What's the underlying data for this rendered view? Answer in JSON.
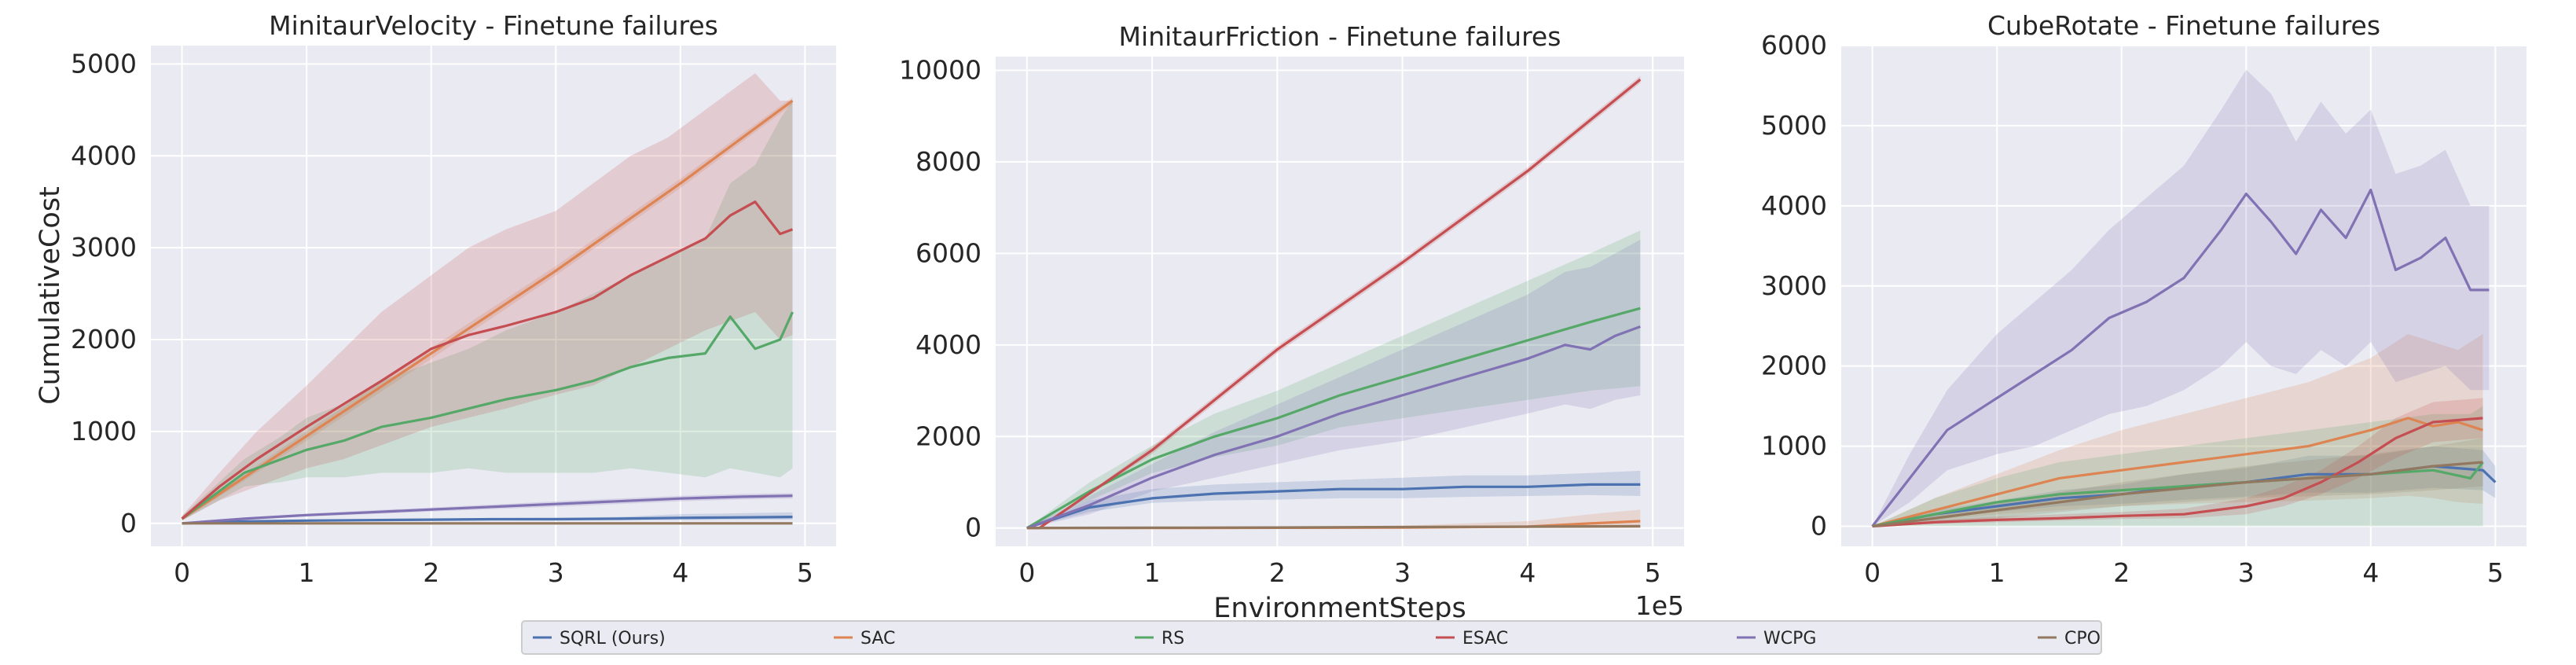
{
  "figure": {
    "ylabel": "CumulativeCost",
    "xlabel": "EnvironmentSteps",
    "x_scale_label": "1e5"
  },
  "legend": {
    "entries": [
      {
        "name": "SQRL (Ours)",
        "color": "#4c72b0"
      },
      {
        "name": "SAC",
        "color": "#dd8452"
      },
      {
        "name": "RS",
        "color": "#55a868"
      },
      {
        "name": "ESAC",
        "color": "#c44e52"
      },
      {
        "name": "WCPG",
        "color": "#8172b3"
      },
      {
        "name": "CPO",
        "color": "#937860"
      }
    ]
  },
  "chart_data": [
    {
      "type": "line",
      "title": "MinitaurVelocity - Finetune failures",
      "ylabel": "CumulativeCost",
      "xlim": [
        -0.25,
        5.25
      ],
      "ylim": [
        -250,
        5200
      ],
      "xticks": [
        0,
        1,
        2,
        3,
        4,
        5
      ],
      "yticks": [
        0,
        1000,
        2000,
        3000,
        4000,
        5000
      ],
      "grid": true,
      "series": [
        {
          "name": "SQRL (Ours)",
          "color": "#4c72b0",
          "x": [
            0,
            0.5,
            1,
            1.5,
            2,
            2.5,
            3,
            3.5,
            4,
            4.5,
            4.9
          ],
          "y": [
            0,
            20,
            30,
            35,
            40,
            45,
            45,
            50,
            60,
            65,
            70
          ],
          "lo": [
            0,
            10,
            20,
            25,
            28,
            30,
            30,
            32,
            35,
            38,
            40
          ],
          "hi": [
            0,
            30,
            40,
            48,
            52,
            58,
            62,
            70,
            100,
            110,
            120
          ]
        },
        {
          "name": "SAC",
          "color": "#dd8452",
          "x": [
            0,
            1,
            2,
            3,
            4,
            4.9
          ],
          "y": [
            50,
            950,
            1850,
            2750,
            3700,
            4600
          ],
          "lo": [
            30,
            900,
            1790,
            2700,
            3650,
            4560
          ],
          "hi": [
            70,
            1000,
            1910,
            2800,
            3750,
            4640
          ]
        },
        {
          "name": "RS",
          "color": "#55a868",
          "x": [
            0,
            0.5,
            0.8,
            1,
            1.3,
            1.6,
            2,
            2.3,
            2.6,
            3,
            3.3,
            3.6,
            3.9,
            4.2,
            4.4,
            4.6,
            4.8,
            4.9
          ],
          "y": [
            50,
            550,
            700,
            800,
            900,
            1050,
            1150,
            1250,
            1350,
            1450,
            1550,
            1700,
            1800,
            1850,
            2250,
            1900,
            2000,
            2300
          ],
          "lo": [
            30,
            400,
            450,
            500,
            500,
            550,
            550,
            600,
            550,
            550,
            550,
            600,
            550,
            500,
            600,
            550,
            500,
            600
          ],
          "hi": [
            80,
            700,
            950,
            1150,
            1300,
            1550,
            1750,
            1900,
            2100,
            2300,
            2500,
            2700,
            2900,
            3100,
            3700,
            3900,
            4400,
            4600
          ]
        },
        {
          "name": "ESAC",
          "color": "#c44e52",
          "x": [
            0,
            0.3,
            0.6,
            1,
            1.3,
            1.6,
            2,
            2.3,
            2.6,
            3,
            3.3,
            3.6,
            3.9,
            4.2,
            4.4,
            4.6,
            4.8,
            4.9
          ],
          "y": [
            50,
            400,
            700,
            1050,
            1300,
            1550,
            1900,
            2050,
            2150,
            2300,
            2450,
            2700,
            2900,
            3100,
            3350,
            3500,
            3150,
            3200
          ],
          "lo": [
            30,
            250,
            400,
            600,
            700,
            850,
            1050,
            1150,
            1250,
            1400,
            1500,
            1700,
            1900,
            2100,
            2200,
            2300,
            2000,
            2050
          ],
          "hi": [
            80,
            550,
            1000,
            1500,
            1900,
            2300,
            2700,
            3000,
            3200,
            3400,
            3700,
            4000,
            4200,
            4500,
            4700,
            4900,
            4600,
            4600
          ]
        },
        {
          "name": "WCPG",
          "color": "#8172b3",
          "x": [
            0,
            0.5,
            1,
            1.5,
            2,
            2.5,
            3,
            3.5,
            4,
            4.5,
            4.9
          ],
          "y": [
            0,
            50,
            90,
            120,
            150,
            180,
            210,
            240,
            270,
            290,
            300
          ],
          "lo": [
            0,
            40,
            75,
            100,
            128,
            155,
            180,
            210,
            240,
            260,
            270
          ],
          "hi": [
            0,
            60,
            105,
            140,
            172,
            205,
            240,
            270,
            300,
            320,
            330
          ]
        },
        {
          "name": "CPO",
          "color": "#937860",
          "x": [
            0,
            4.9
          ],
          "y": [
            0,
            0
          ],
          "lo": [
            0,
            0
          ],
          "hi": [
            0,
            0
          ]
        }
      ]
    },
    {
      "type": "line",
      "title": "MinitaurFriction - Finetune failures",
      "ylabel": "",
      "xlim": [
        -0.25,
        5.25
      ],
      "ylim": [
        -400,
        10300
      ],
      "xticks": [
        0,
        1,
        2,
        3,
        4,
        5
      ],
      "yticks": [
        0,
        2000,
        4000,
        6000,
        8000,
        10000
      ],
      "grid": true,
      "series": [
        {
          "name": "SQRL (Ours)",
          "color": "#4c72b0",
          "x": [
            0,
            0.5,
            1,
            1.5,
            2,
            2.5,
            3,
            3.5,
            4,
            4.5,
            4.9
          ],
          "y": [
            0,
            450,
            650,
            750,
            800,
            850,
            850,
            900,
            900,
            950,
            950
          ],
          "lo": [
            0,
            350,
            550,
            600,
            620,
            650,
            650,
            680,
            700,
            720,
            700
          ],
          "hi": [
            0,
            600,
            850,
            950,
            1000,
            1050,
            1100,
            1150,
            1150,
            1200,
            1250
          ]
        },
        {
          "name": "SAC",
          "color": "#dd8452",
          "x": [
            0,
            1,
            2,
            3,
            4,
            4.5,
            4.9
          ],
          "y": [
            0,
            0,
            5,
            10,
            30,
            100,
            150
          ],
          "lo": [
            0,
            0,
            0,
            0,
            0,
            0,
            0
          ],
          "hi": [
            0,
            10,
            20,
            50,
            150,
            300,
            400
          ]
        },
        {
          "name": "RS",
          "color": "#55a868",
          "x": [
            0,
            0.5,
            1,
            1.5,
            2,
            2.5,
            3,
            3.5,
            4,
            4.5,
            4.9
          ],
          "y": [
            0,
            800,
            1500,
            2000,
            2400,
            2900,
            3300,
            3700,
            4100,
            4500,
            4800
          ],
          "lo": [
            0,
            600,
            1200,
            1550,
            1800,
            2200,
            2400,
            2600,
            2800,
            3000,
            3100
          ],
          "hi": [
            0,
            1000,
            1800,
            2500,
            3000,
            3600,
            4200,
            4800,
            5400,
            6000,
            6500
          ]
        },
        {
          "name": "ESAC",
          "color": "#c44e52",
          "x": [
            0,
            0.1,
            1,
            2,
            3,
            4,
            4.9
          ],
          "y": [
            0,
            0,
            1700,
            3900,
            5800,
            7800,
            9800
          ],
          "lo": [
            0,
            0,
            1620,
            3820,
            5720,
            7720,
            9720
          ],
          "hi": [
            0,
            0,
            1780,
            3980,
            5880,
            7880,
            9880
          ]
        },
        {
          "name": "WCPG",
          "color": "#8172b3",
          "x": [
            0,
            0.5,
            1,
            1.5,
            2,
            2.5,
            3,
            3.5,
            4,
            4.3,
            4.5,
            4.7,
            4.9
          ],
          "y": [
            0,
            500,
            1100,
            1600,
            2000,
            2500,
            2900,
            3300,
            3700,
            4000,
            3900,
            4200,
            4400
          ],
          "lo": [
            0,
            300,
            800,
            1100,
            1400,
            1700,
            1900,
            2200,
            2500,
            2700,
            2600,
            2800,
            2900
          ],
          "hi": [
            0,
            700,
            1400,
            2100,
            2700,
            3300,
            3900,
            4500,
            5100,
            5600,
            5700,
            6000,
            6300
          ]
        },
        {
          "name": "CPO",
          "color": "#937860",
          "x": [
            0,
            1,
            2,
            3,
            4,
            4.9
          ],
          "y": [
            0,
            5,
            10,
            20,
            30,
            40
          ],
          "lo": [
            0,
            0,
            0,
            0,
            0,
            0
          ],
          "hi": [
            0,
            20,
            30,
            40,
            50,
            60
          ]
        }
      ]
    },
    {
      "type": "line",
      "title": "CubeRotate - Finetune failures",
      "ylabel": "",
      "xlim": [
        -0.25,
        5.25
      ],
      "ylim": [
        -250,
        6000
      ],
      "xticks": [
        0,
        1,
        2,
        3,
        4,
        5
      ],
      "yticks": [
        0,
        1000,
        2000,
        3000,
        4000,
        5000,
        6000
      ],
      "grid": true,
      "series": [
        {
          "name": "SQRL (Ours)",
          "color": "#4c72b0",
          "x": [
            0,
            0.5,
            1,
            1.5,
            2,
            2.5,
            3,
            3.5,
            4,
            4.5,
            4.9,
            5.0
          ],
          "y": [
            0,
            150,
            250,
            350,
            400,
            500,
            550,
            650,
            650,
            750,
            700,
            550
          ],
          "lo": [
            0,
            100,
            180,
            250,
            280,
            330,
            370,
            420,
            420,
            480,
            450,
            350
          ],
          "hi": [
            0,
            200,
            320,
            450,
            520,
            650,
            730,
            880,
            880,
            1000,
            950,
            750
          ]
        },
        {
          "name": "SAC",
          "color": "#dd8452",
          "x": [
            0,
            0.5,
            1,
            1.5,
            2,
            2.5,
            3,
            3.5,
            4,
            4.3,
            4.5,
            4.7,
            4.9
          ],
          "y": [
            0,
            200,
            400,
            600,
            700,
            800,
            900,
            1000,
            1200,
            1350,
            1250,
            1300,
            1200
          ],
          "lo": [
            0,
            80,
            150,
            200,
            250,
            280,
            300,
            320,
            350,
            380,
            350,
            300,
            280
          ],
          "hi": [
            0,
            350,
            650,
            950,
            1200,
            1400,
            1600,
            1800,
            2100,
            2400,
            2300,
            2200,
            2400
          ]
        },
        {
          "name": "RS",
          "color": "#55a868",
          "x": [
            0,
            0.5,
            1,
            1.5,
            2,
            2.5,
            3,
            3.5,
            4,
            4.5,
            4.8,
            4.9
          ],
          "y": [
            0,
            150,
            300,
            400,
            450,
            500,
            550,
            600,
            650,
            700,
            600,
            800
          ],
          "lo": [
            0,
            0,
            0,
            0,
            0,
            0,
            0,
            0,
            0,
            0,
            0,
            0
          ],
          "hi": [
            0,
            350,
            600,
            800,
            900,
            1000,
            1100,
            1200,
            1300,
            1400,
            1400,
            1500
          ]
        },
        {
          "name": "ESAC",
          "color": "#c44e52",
          "x": [
            0,
            0.5,
            1,
            1.5,
            2,
            2.5,
            3,
            3.3,
            3.6,
            3.9,
            4.2,
            4.5,
            4.9
          ],
          "y": [
            0,
            50,
            80,
            100,
            130,
            150,
            250,
            350,
            550,
            800,
            1100,
            1300,
            1350
          ],
          "lo": [
            0,
            30,
            50,
            70,
            90,
            100,
            150,
            250,
            400,
            600,
            850,
            1050,
            1100
          ],
          "hi": [
            0,
            80,
            120,
            150,
            180,
            220,
            350,
            500,
            700,
            1000,
            1350,
            1550,
            1600
          ]
        },
        {
          "name": "WCPG",
          "color": "#8172b3",
          "x": [
            0,
            0.3,
            0.6,
            1,
            1.3,
            1.6,
            1.9,
            2.2,
            2.5,
            2.8,
            3,
            3.2,
            3.4,
            3.6,
            3.8,
            4,
            4.2,
            4.4,
            4.6,
            4.8,
            4.95
          ],
          "y": [
            0,
            600,
            1200,
            1600,
            1900,
            2200,
            2600,
            2800,
            3100,
            3700,
            4150,
            3800,
            3400,
            3950,
            3600,
            4200,
            3200,
            3350,
            3600,
            2950,
            2950
          ],
          "lo": [
            0,
            300,
            700,
            900,
            1000,
            1200,
            1400,
            1500,
            1700,
            2000,
            2300,
            2000,
            1900,
            2200,
            2000,
            2300,
            1800,
            1900,
            2000,
            1700,
            1700
          ],
          "hi": [
            0,
            900,
            1700,
            2400,
            2800,
            3200,
            3700,
            4100,
            4500,
            5200,
            5700,
            5400,
            4800,
            5300,
            4900,
            5200,
            4400,
            4500,
            4700,
            4000,
            4000
          ]
        },
        {
          "name": "CPO",
          "color": "#937860",
          "x": [
            0,
            1,
            2,
            3,
            4,
            4.5,
            4.9
          ],
          "y": [
            0,
            200,
            400,
            550,
            650,
            750,
            800
          ],
          "lo": [
            0,
            100,
            250,
            350,
            400,
            450,
            500
          ],
          "hi": [
            0,
            300,
            550,
            750,
            900,
            1000,
            1100
          ]
        }
      ]
    }
  ]
}
